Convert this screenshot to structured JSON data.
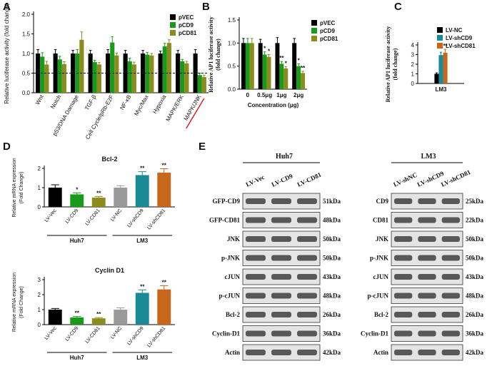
{
  "panels": [
    "A",
    "B",
    "C",
    "D",
    "E"
  ],
  "chart_data": [
    {
      "type": "bar",
      "ylabel": [
        "Relative luciferase activity (fold change)"
      ],
      "categories": [
        "Wnt",
        "Notch",
        "p53/DNA Damage",
        "TGF-β",
        "Cell Cycle/pRb-E2F",
        "NF-κB",
        "Myc/Max",
        "Hypoxia",
        "MAPK/ERK",
        "MAPK/JNK"
      ],
      "series": [
        {
          "name": "pVEC",
          "color": "#000000",
          "values": [
            1.0,
            1.0,
            1.0,
            1.0,
            1.0,
            1.0,
            1.0,
            1.0,
            1.0,
            1.0
          ],
          "errors": [
            0.1,
            0.1,
            0.08,
            0.08,
            0.1,
            0.08,
            0.08,
            0.06,
            0.08,
            0.1
          ]
        },
        {
          "name": "pCD9",
          "color": "#1a9a1a",
          "values": [
            0.92,
            0.85,
            1.0,
            0.78,
            1.28,
            0.8,
            0.97,
            1.18,
            0.8,
            0.45
          ],
          "errors": [
            0.1,
            0.08,
            0.1,
            0.05,
            0.15,
            0.08,
            0.06,
            0.08,
            0.05,
            0.05
          ]
        },
        {
          "name": "pCD81",
          "color": "#8b8b1e",
          "values": [
            0.72,
            0.73,
            1.35,
            0.72,
            0.95,
            0.72,
            0.95,
            1.27,
            0.75,
            0.4
          ],
          "errors": [
            0.08,
            0.06,
            0.2,
            0.05,
            0.06,
            0.06,
            0.05,
            0.08,
            0.05,
            0.05
          ]
        }
      ],
      "ylim": [
        0,
        2
      ],
      "yticks": [
        {
          "value": 0,
          "label": "0.0"
        },
        {
          "value": 0.5,
          "label": "0.5"
        },
        {
          "value": 1,
          "label": "1.0"
        },
        {
          "value": 1.5,
          "label": "1.5"
        },
        {
          "value": 2,
          "label": "2.0"
        }
      ],
      "reference_line": 0.5,
      "legend": "top-right"
    },
    {
      "type": "bar",
      "ylabel": [
        "Relative AP1 luciferase activity",
        "(fold change)"
      ],
      "xlabel": "Concentration (μg)",
      "categories": [
        "0",
        "0.5μg",
        "1μg",
        "2μg"
      ],
      "series": [
        {
          "name": "pVEC",
          "color": "#000000",
          "values": [
            1.0,
            1.0,
            1.0,
            1.0
          ],
          "errors": [
            0.1,
            0.08,
            0.12,
            0.1
          ]
        },
        {
          "name": "pCD9",
          "color": "#1a9a1a",
          "values": [
            1.0,
            0.75,
            0.55,
            0.5
          ],
          "errors": [
            0.1,
            0.06,
            0.05,
            0.05
          ],
          "significance": [
            null,
            "*",
            "**",
            "*"
          ]
        },
        {
          "name": "pCD81",
          "color": "#8b8b1e",
          "values": [
            1.0,
            0.7,
            0.45,
            0.35
          ],
          "errors": [
            0.1,
            0.05,
            0.04,
            0.04
          ],
          "significance": [
            null,
            "*",
            "*",
            "**"
          ]
        }
      ],
      "ylim": [
        0,
        1.5
      ],
      "yticks": [
        {
          "value": 0,
          "label": "0.0"
        },
        {
          "value": 0.5,
          "label": "0.5"
        },
        {
          "value": 1,
          "label": "1.0"
        },
        {
          "value": 1.5,
          "label": "1.5"
        }
      ],
      "legend": "top-right"
    },
    {
      "type": "bar",
      "ylabel": [
        "Relative AP1 luciferase activity",
        "(fold change)"
      ],
      "categories": [
        "LM3"
      ],
      "series": [
        {
          "name": "LV-NC",
          "color": "#000000",
          "values": [
            1.0
          ],
          "errors": [
            0.1
          ]
        },
        {
          "name": "LV-shCD9",
          "color": "#1a8a96",
          "values": [
            2.95
          ],
          "errors": [
            0.3
          ],
          "significance": [
            "**"
          ]
        },
        {
          "name": "LV-shCD81",
          "color": "#c8661c",
          "values": [
            3.2
          ],
          "errors": [
            0.35
          ],
          "significance": [
            "**"
          ]
        }
      ],
      "ylim": [
        0,
        4
      ],
      "yticks": [
        0,
        1,
        2,
        3,
        4
      ],
      "legend": "top-right"
    },
    {
      "type": "bar",
      "title": "Bcl-2",
      "ylabel": [
        "Relative mRNA expression",
        "(Fold Change)"
      ],
      "categories": [
        "LV-Vec",
        "LV-CD9",
        "LV-CD81",
        "LV-NC",
        "LV-shCD9",
        "LV-shCD81"
      ],
      "values": [
        1.0,
        0.65,
        0.48,
        1.0,
        1.65,
        1.78
      ],
      "errors": [
        0.15,
        0.08,
        0.06,
        0.1,
        0.18,
        0.2
      ],
      "colors": [
        "#000000",
        "#1a9a1a",
        "#8b8b1e",
        "#9a9a9a",
        "#1a8a96",
        "#c8661c"
      ],
      "significance": [
        null,
        "*",
        "**",
        null,
        "**",
        "**"
      ],
      "groups": [
        "Huh7",
        "LM3"
      ],
      "ylim": [
        0,
        2
      ],
      "yticks": [
        0,
        1,
        2
      ]
    },
    {
      "type": "bar",
      "title": "Cyclin D1",
      "ylabel": [
        "Relative mRNA expression",
        "(Fold Change)"
      ],
      "categories": [
        "LV-Vec",
        "LV-CD9",
        "LV-CD81",
        "LV-NC",
        "LV-shCD9",
        "LV-shCD81"
      ],
      "values": [
        1.0,
        0.48,
        0.42,
        1.0,
        2.12,
        2.35
      ],
      "errors": [
        0.08,
        0.06,
        0.05,
        0.12,
        0.2,
        0.25
      ],
      "colors": [
        "#000000",
        "#1a9a1a",
        "#8b8b1e",
        "#9a9a9a",
        "#1a8a96",
        "#c8661c"
      ],
      "significance": [
        null,
        "**",
        "**",
        null,
        "**",
        "**"
      ],
      "groups": [
        "Huh7",
        "LM3"
      ],
      "ylim": [
        0,
        3
      ],
      "yticks": [
        0,
        1,
        2,
        3
      ]
    }
  ],
  "blots": [
    {
      "title": "Huh7",
      "lanes": [
        "LV-Vec",
        "LV-CD9",
        "LV-CD81"
      ],
      "rows": [
        {
          "protein": "GFP-CD9",
          "size": "51kDa"
        },
        {
          "protein": "GFP-CD81",
          "size": "48kDa"
        },
        {
          "protein": "JNK",
          "size": "50kDa"
        },
        {
          "protein": "p-JNK",
          "size": "50kDa"
        },
        {
          "protein": "cJUN",
          "size": "43kDa"
        },
        {
          "protein": "p-cJUN",
          "size": "48kDa"
        },
        {
          "protein": "Bcl-2",
          "size": "26kDa"
        },
        {
          "protein": "Cyclin-D1",
          "size": "36kDa"
        },
        {
          "protein": "Actin",
          "size": "42kDa"
        }
      ]
    },
    {
      "title": "LM3",
      "lanes": [
        "LV-shNC",
        "LV-shCD9",
        "LV-shCD81"
      ],
      "rows": [
        {
          "protein": "CD9",
          "size": "25kDa"
        },
        {
          "protein": "CD81",
          "size": "22kDa"
        },
        {
          "protein": "JNK",
          "size": "50kDa"
        },
        {
          "protein": "p-JNK",
          "size": "50kDa"
        },
        {
          "protein": "cJUN",
          "size": "43kDa"
        },
        {
          "protein": "p-cJUN",
          "size": "48kDa"
        },
        {
          "protein": "Bcl-2",
          "size": "26kDa"
        },
        {
          "protein": "Cyclin-D1",
          "size": "36kDa"
        },
        {
          "protein": "Actin",
          "size": "42kDa"
        }
      ]
    }
  ]
}
